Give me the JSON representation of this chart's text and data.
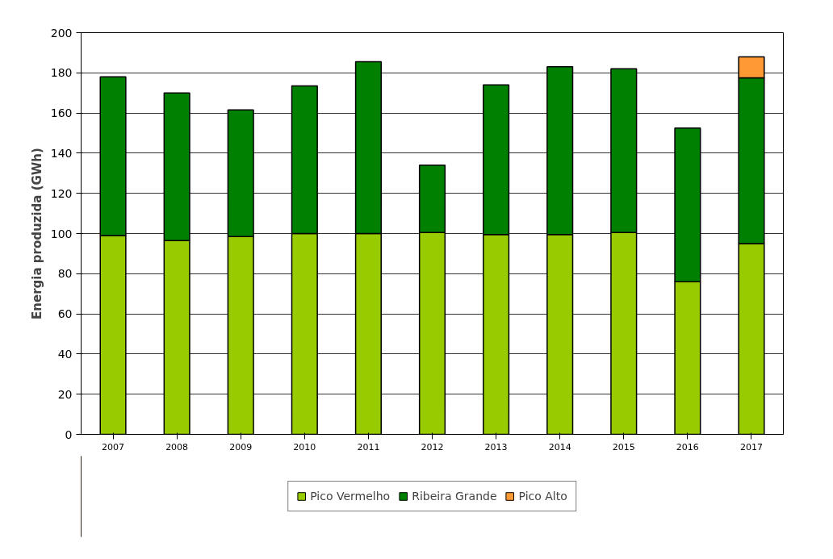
{
  "chart_data": {
    "type": "bar",
    "stacked": true,
    "ylabel": "Energia produzida (GWh)",
    "categories": [
      "2007",
      "2008",
      "2009",
      "2010",
      "2011",
      "2012",
      "2013",
      "2014",
      "2015",
      "2016",
      "2017"
    ],
    "series": [
      {
        "name": "Pico Vermelho",
        "color": "#99cc00",
        "values": [
          99,
          96.5,
          98.5,
          100,
          100,
          100.5,
          99.5,
          99.5,
          100.5,
          76,
          95
        ]
      },
      {
        "name": "Ribeira Grande",
        "color": "#008000",
        "values": [
          79,
          73.5,
          63,
          73.5,
          85.5,
          33.5,
          74.5,
          83.5,
          81.5,
          76.5,
          82.5
        ]
      },
      {
        "name": "Pico Alto",
        "color": "#ff9933",
        "values": [
          null,
          null,
          null,
          null,
          null,
          null,
          null,
          null,
          null,
          null,
          10.5
        ]
      }
    ],
    "ylim": [
      0,
      200
    ],
    "yticks": [
      0,
      20,
      40,
      60,
      80,
      100,
      120,
      140,
      160,
      180,
      200
    ],
    "grid": "y",
    "legend": "bottom"
  }
}
